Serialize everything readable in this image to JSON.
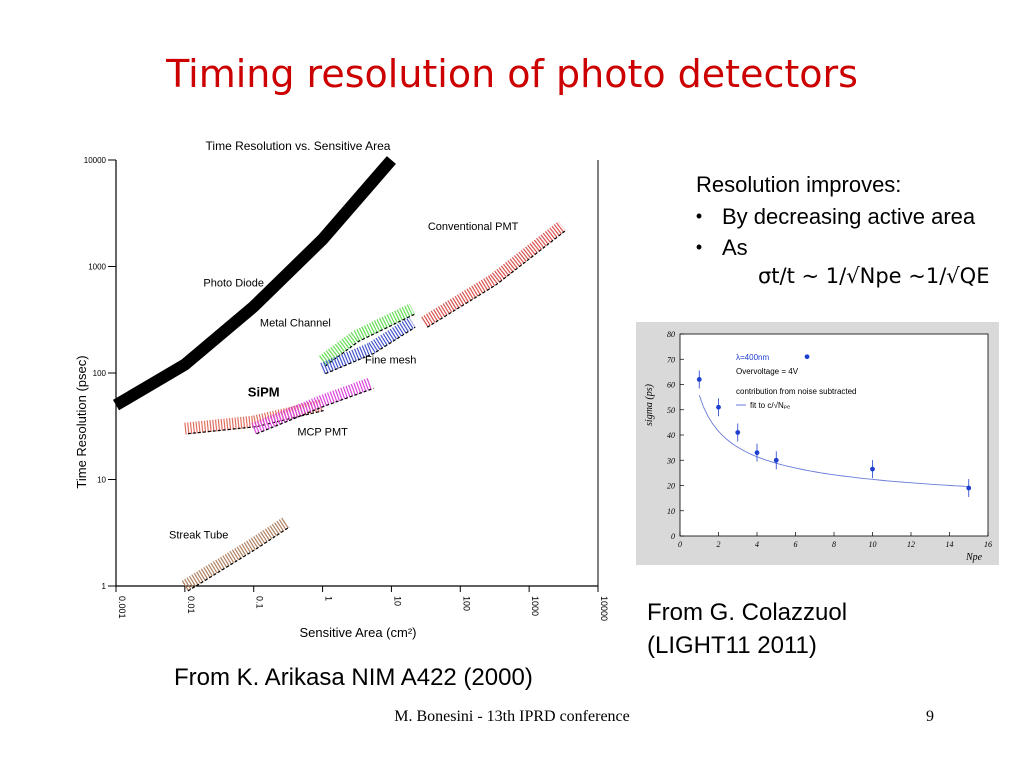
{
  "slide": {
    "title": "Timing resolution of photo detectors",
    "footer": "M. Bonesini - 13th IPRD conference",
    "page_number": "9"
  },
  "text": {
    "heading": "Resolution improves:",
    "bullets": [
      "By decreasing active area",
      "As"
    ],
    "formula": "σt/t ~ 1/√Npe ~1/√QE",
    "cite_right_line1": "From G. Colazzuol",
    "cite_right_line2": "(LIGHT11 2011)",
    "cite_left": "From K. Arikasa  NIM A422 (2000)"
  },
  "chart_data": [
    {
      "type": "line",
      "title": "Time Resolution vs. Sensitive Area",
      "xlabel": "Sensitive Area (cm²)",
      "ylabel": "Time Resolution  (psec)",
      "x_scale": "log",
      "y_scale": "log",
      "xlim": [
        0.001,
        10000
      ],
      "ylim": [
        1,
        10000
      ],
      "x_ticks": [
        "0.001",
        "0.01",
        "0.1",
        "1",
        "10",
        "100",
        "1000",
        "10000"
      ],
      "y_ticks": [
        "1",
        "10",
        "100",
        "1000",
        "10000"
      ],
      "series": [
        {
          "name": "Photo Diode",
          "color": "#000000",
          "x": [
            0.001,
            0.01,
            0.1,
            1,
            10
          ],
          "y": [
            50,
            120,
            420,
            1800,
            10000
          ]
        },
        {
          "name": "Conventional PMT",
          "color": "#d9534f",
          "x": [
            30,
            300,
            3000
          ],
          "y": [
            300,
            750,
            2400
          ]
        },
        {
          "name": "Metal Channel",
          "color": "#66dd55",
          "x": [
            1,
            3,
            20
          ],
          "y": [
            130,
            220,
            400
          ]
        },
        {
          "name": "Fine mesh",
          "color": "#4455cc",
          "x": [
            1,
            5,
            20
          ],
          "y": [
            110,
            170,
            300
          ]
        },
        {
          "name": "SiPM",
          "color": "#e07060",
          "x": [
            0.01,
            0.1,
            1
          ],
          "y": [
            30,
            35,
            50
          ]
        },
        {
          "name": "MCP PMT",
          "color": "#dd44dd",
          "x": [
            0.1,
            1,
            5
          ],
          "y": [
            30,
            55,
            80
          ]
        },
        {
          "name": "Streak Tube",
          "color": "#b08060",
          "x": [
            0.01,
            0.1,
            0.3
          ],
          "y": [
            1,
            2.5,
            4
          ]
        }
      ]
    },
    {
      "type": "scatter",
      "xlabel": "Npe",
      "ylabel": "sigma (ps)",
      "xlim": [
        0,
        16
      ],
      "ylim": [
        0,
        80
      ],
      "x_ticks": [
        "0",
        "2",
        "4",
        "6",
        "8",
        "10",
        "12",
        "14",
        "16"
      ],
      "y_ticks": [
        "0",
        "10",
        "20",
        "30",
        "40",
        "50",
        "60",
        "70",
        "80"
      ],
      "legend": [
        "λ=400nm",
        "Overvoltage = 4V",
        "contribution from noise subtracted",
        "fit to c/√Nₚₑ"
      ],
      "points": [
        {
          "x": 1,
          "y": 62
        },
        {
          "x": 2,
          "y": 51
        },
        {
          "x": 3,
          "y": 41
        },
        {
          "x": 4,
          "y": 33
        },
        {
          "x": 5,
          "y": 30
        },
        {
          "x": 6.6,
          "y": 71
        },
        {
          "x": 10,
          "y": 26.5
        },
        {
          "x": 15,
          "y": 19
        }
      ],
      "fit": {
        "name": "fit to c/√Nₚₑ",
        "c": 65,
        "x_range": [
          1,
          15
        ]
      }
    }
  ]
}
